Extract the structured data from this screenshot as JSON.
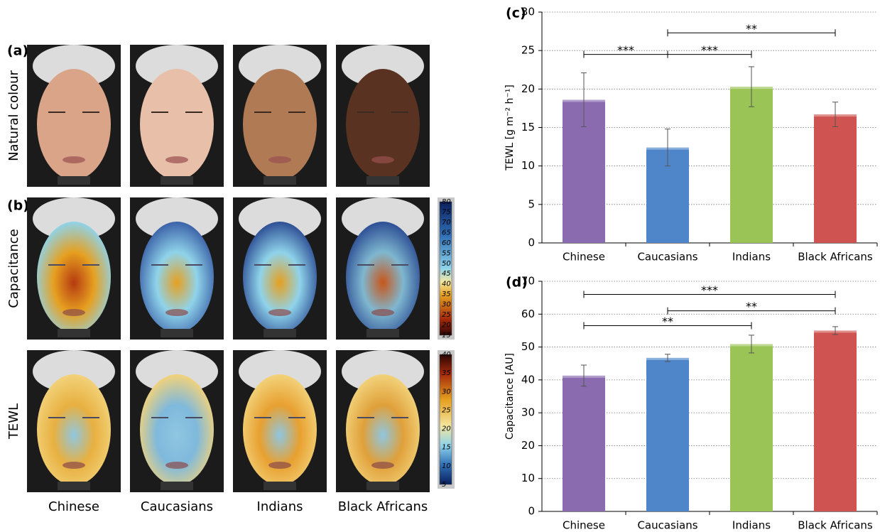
{
  "panel_labels": [
    "(a)",
    "(b)"
  ],
  "row_labels": [
    "Natural colour",
    "Capacitance",
    "TEWL"
  ],
  "column_labels": [
    "Chinese",
    "Caucasians",
    "Indians",
    "Black Africans"
  ],
  "colorbars": [
    {
      "lim": [
        15,
        80
      ],
      "ticks": [
        15,
        20,
        25,
        30,
        35,
        40,
        45,
        50,
        55,
        60,
        65,
        70,
        75,
        80
      ]
    },
    {
      "lim": [
        5,
        40
      ],
      "ticks": [
        5,
        10,
        15,
        20,
        25,
        30,
        35,
        40
      ]
    }
  ],
  "chart_data": [
    {
      "type": "bar",
      "title": "(c)",
      "y_label": "TEWL [g m⁻² h⁻¹]",
      "categories": [
        "Chinese",
        "Caucasians",
        "Indians",
        "Black Africans"
      ],
      "values": [
        18.6,
        12.4,
        20.3,
        16.7
      ],
      "errors": [
        3.5,
        2.4,
        2.6,
        1.6
      ],
      "colors": [
        "#8a6bb0",
        "#4f86c9",
        "#9bc456",
        "#cf5350"
      ],
      "ylim": [
        0,
        30
      ],
      "yticks": [
        0,
        5,
        10,
        15,
        20,
        25,
        30
      ],
      "grid": true,
      "brackets": [
        {
          "between": [
            0,
            1
          ],
          "y": 24.5,
          "label": "***"
        },
        {
          "between": [
            1,
            2
          ],
          "y": 24.5,
          "label": "***"
        },
        {
          "between": [
            1,
            3
          ],
          "y": 27.3,
          "label": "**"
        }
      ]
    },
    {
      "type": "bar",
      "title": "(d)",
      "y_label": "Capacitance [AU]",
      "categories": [
        "Chinese",
        "Caucasians",
        "Indians",
        "Black Africans"
      ],
      "values": [
        41.3,
        46.7,
        50.9,
        55.0
      ],
      "errors": [
        3.2,
        1.1,
        2.7,
        1.2
      ],
      "colors": [
        "#8a6bb0",
        "#4f86c9",
        "#9bc456",
        "#cf5350"
      ],
      "ylim": [
        0,
        70
      ],
      "yticks": [
        0,
        10,
        20,
        30,
        40,
        50,
        60,
        70
      ],
      "grid": true,
      "brackets": [
        {
          "between": [
            0,
            3
          ],
          "y": 66,
          "label": "***"
        },
        {
          "between": [
            1,
            3
          ],
          "y": 61,
          "label": "**"
        },
        {
          "between": [
            0,
            2
          ],
          "y": 56.5,
          "label": "**"
        }
      ]
    }
  ]
}
